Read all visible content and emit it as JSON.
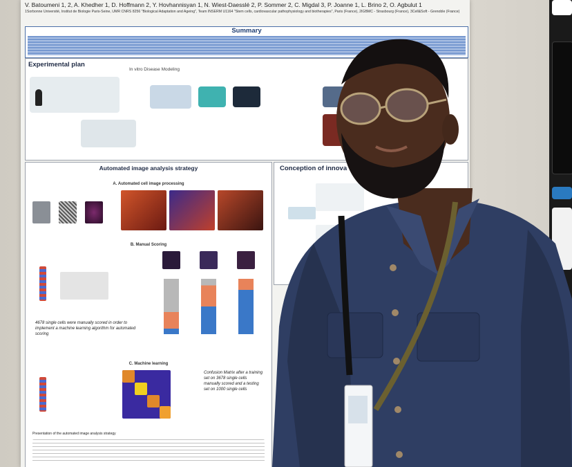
{
  "poster": {
    "authors": "V. Batoumeni 1, 2, A. Khedher 1, D. Hoffmann 2, Y. Hovhannisyan 1, N. Wiest-Daesslé 2, P. Sommer 2, C. Migdal 3, P. Joanne 1, L. Brino 2, O. Agbulut 1",
    "affiliations": "1Sorbonne Université, Institut de Biologie Paris-Seine, UMR CNRS 8256 \"Biological Adaptation and Ageing\", Team INSERM U1164 \"Stem cells, cardiovascular pathophysiology and biotherapies\", Paris (France), 2IGBMC - Strasbourg (France), 3Cell&Soft - Grenoble (France)",
    "summary_title": "Summary",
    "experimental_plan": {
      "title": "Experimental plan",
      "subtitle": "In vitro Disease Modeling"
    },
    "automated": {
      "title": "Automated image analysis strategy",
      "section_a": "A. Automated cell image processing",
      "section_b": "B. Manual Scoring",
      "section_c": "C. Machine learning",
      "note_b": "4678 single cells were manually scored in order to implement a machine learning algorithm for automated scoring",
      "note_c": "Confusion Matrix after a training set on 3678 single cells manually scored and a testing set on 1000 single cells",
      "caption": "Presentation of the automated image analysis strategy"
    },
    "concept": {
      "title": "Conception of innova"
    }
  },
  "colors": {
    "poster_bg": "#f3f3f0",
    "accent_blue": "#1f3e73",
    "shirt": "#2f3e63",
    "skin": "#4a2c1e"
  }
}
